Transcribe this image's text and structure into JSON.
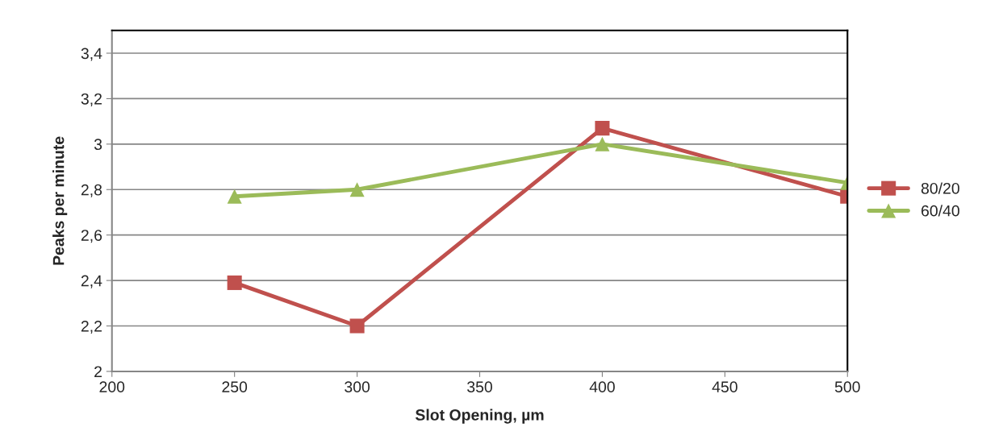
{
  "chart_data": {
    "type": "line",
    "xlabel": "Slot Opening, µm",
    "ylabel": "Peaks per minute",
    "x": [
      250,
      300,
      400,
      500
    ],
    "series": [
      {
        "name": "80/20",
        "color": "#c0504d",
        "marker": "square",
        "values": [
          2.39,
          2.2,
          3.07,
          2.77
        ]
      },
      {
        "name": "60/40",
        "color": "#9bbb59",
        "marker": "triangle",
        "values": [
          2.77,
          2.8,
          3.0,
          2.83
        ]
      }
    ],
    "xlim": [
      200,
      500
    ],
    "xticks": [
      200,
      250,
      300,
      350,
      400,
      450,
      500
    ],
    "ylim": [
      2,
      3.5
    ],
    "yticks": [
      2,
      {
        "value": 2.2,
        "label": "2,2"
      },
      {
        "value": 2.4,
        "label": "2,4"
      },
      {
        "value": 2.6,
        "label": "2,6"
      },
      {
        "value": 2.8,
        "label": "2,8"
      },
      3,
      {
        "value": 3.2,
        "label": "3,2"
      },
      {
        "value": 3.4,
        "label": "3,4"
      }
    ],
    "grid": "y",
    "legend": "right",
    "line_style": "solid"
  }
}
